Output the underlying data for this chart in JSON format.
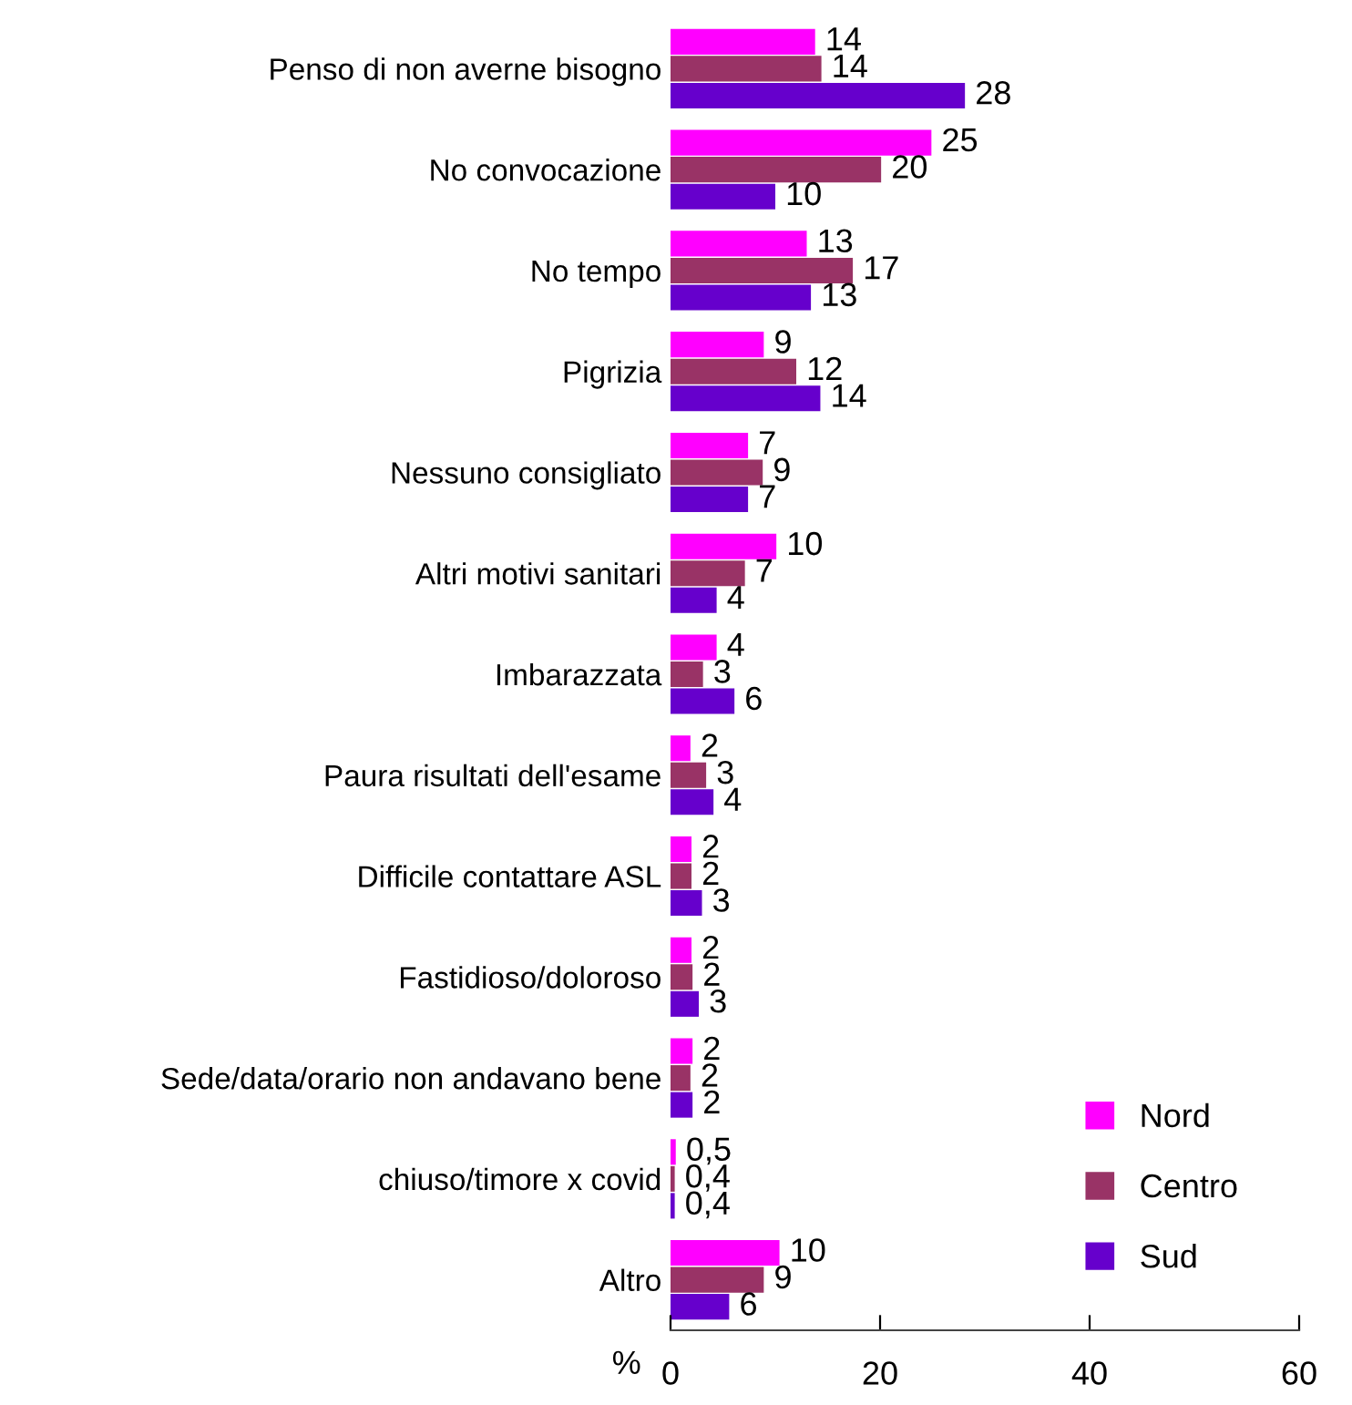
{
  "chart_data": {
    "type": "bar",
    "orientation": "horizontal",
    "xlabel": "%",
    "categories": [
      "Penso di non averne bisogno",
      "No convocazione",
      "No tempo",
      "Pigrizia",
      "Nessuno consigliato",
      "Altri motivi sanitari",
      "Imbarazzata",
      "Paura risultati dell'esame",
      "Difficile contattare ASL",
      "Fastidioso/doloroso",
      "Sede/data/orario non andavano bene",
      "chiuso/timore x covid",
      "Altro"
    ],
    "series": [
      {
        "name": "Nord",
        "color": "#ff00ff",
        "values": [
          13.8,
          24.9,
          13.0,
          8.9,
          7.4,
          10.1,
          4.4,
          1.9,
          2.0,
          2.0,
          2.1,
          0.5,
          10.4
        ],
        "value_labels": [
          "14",
          "25",
          "13",
          "9",
          "7",
          "10",
          "4",
          "2",
          "2",
          "2",
          "2",
          "0,5",
          "10"
        ]
      },
      {
        "name": "Centro",
        "color": "#993366",
        "values": [
          14.4,
          20.1,
          17.4,
          12.0,
          8.8,
          7.1,
          3.1,
          3.4,
          2.0,
          2.1,
          1.9,
          0.4,
          8.9
        ],
        "value_labels": [
          "14",
          "20",
          "17",
          "12",
          "9",
          "7",
          "3",
          "3",
          "2",
          "2",
          "2",
          "0,4",
          "9"
        ]
      },
      {
        "name": "Sud",
        "color": "#6600cc",
        "values": [
          28.1,
          10.0,
          13.4,
          14.3,
          7.4,
          4.4,
          6.1,
          4.1,
          3.0,
          2.7,
          2.1,
          0.4,
          5.6
        ],
        "value_labels": [
          "28",
          "10",
          "13",
          "14",
          "7",
          "4",
          "6",
          "4",
          "3",
          "3",
          "2",
          "0,4",
          "6"
        ]
      }
    ],
    "xlim": [
      0,
      60
    ],
    "xticks": [
      0,
      20,
      40,
      60
    ],
    "grid": false,
    "legend": "bottom right"
  }
}
